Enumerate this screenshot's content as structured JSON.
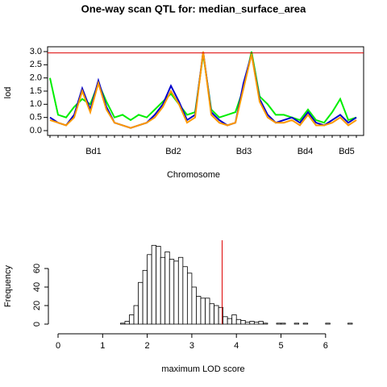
{
  "chart_data": [
    {
      "type": "line",
      "title": "One-way scan QTL for: median_surface_area",
      "y_label": "lod",
      "x_label": "Chromosome",
      "chromosomes": [
        {
          "name": "Bd1",
          "start": 0,
          "end": 108
        },
        {
          "name": "Bd2",
          "start": 108,
          "end": 198
        },
        {
          "name": "Bd3",
          "start": 198,
          "end": 283
        },
        {
          "name": "Bd4",
          "start": 283,
          "end": 350
        },
        {
          "name": "Bd5",
          "start": 350,
          "end": 386
        }
      ],
      "x": [
        0,
        10,
        20,
        30,
        40,
        50,
        60,
        70,
        80,
        90,
        100,
        110,
        120,
        130,
        140,
        150,
        160,
        170,
        180,
        190,
        200,
        210,
        220,
        230,
        240,
        250,
        260,
        270,
        280,
        290,
        300,
        310,
        320,
        330,
        340,
        350,
        360,
        370,
        380
      ],
      "series": [
        {
          "color": "#00ee00",
          "values": [
            2.0,
            0.6,
            0.5,
            0.9,
            1.2,
            1.0,
            1.8,
            1.1,
            0.5,
            0.6,
            0.4,
            0.6,
            0.5,
            0.8,
            1.1,
            1.4,
            1.0,
            0.6,
            0.7,
            2.9,
            0.8,
            0.5,
            0.6,
            0.7,
            1.6,
            3.0,
            1.3,
            1.0,
            0.6,
            0.6,
            0.5,
            0.4,
            0.8,
            0.4,
            0.3,
            0.7,
            1.2,
            0.4,
            0.5
          ]
        },
        {
          "color": "#0000cc",
          "values": [
            0.5,
            0.3,
            0.2,
            0.6,
            1.6,
            0.8,
            1.9,
            0.9,
            0.3,
            0.2,
            0.1,
            0.2,
            0.3,
            0.6,
            1.0,
            1.7,
            1.1,
            0.4,
            0.6,
            3.0,
            0.7,
            0.4,
            0.2,
            0.3,
            1.8,
            2.9,
            1.2,
            0.6,
            0.3,
            0.4,
            0.5,
            0.3,
            0.7,
            0.3,
            0.2,
            0.4,
            0.6,
            0.3,
            0.5
          ]
        },
        {
          "color": "#ff9900",
          "values": [
            0.4,
            0.3,
            0.2,
            0.5,
            1.5,
            0.7,
            1.8,
            0.8,
            0.3,
            0.2,
            0.1,
            0.2,
            0.3,
            0.5,
            0.9,
            1.5,
            1.0,
            0.3,
            0.5,
            3.0,
            0.6,
            0.3,
            0.2,
            0.3,
            1.6,
            2.9,
            1.1,
            0.5,
            0.3,
            0.3,
            0.4,
            0.2,
            0.6,
            0.2,
            0.2,
            0.3,
            0.5,
            0.2,
            0.4
          ]
        }
      ],
      "threshold": 2.95,
      "threshold_color": "#dd0000",
      "xlim": [
        0,
        386
      ],
      "ylim": [
        0,
        3
      ],
      "yticks": [
        {
          "value": 0,
          "label": "0.0"
        },
        {
          "value": 0.5,
          "label": "0.5"
        },
        {
          "value": 1,
          "label": "1.0"
        },
        {
          "value": 1.5,
          "label": "1.5"
        },
        {
          "value": 2,
          "label": "2.0"
        },
        {
          "value": 2.5,
          "label": "2.5"
        },
        {
          "value": 3,
          "label": "3.0"
        }
      ]
    },
    {
      "type": "histogram",
      "x_label": "maximum LOD score",
      "y_label": "Frequency",
      "bins": [
        1.4,
        1.5,
        1.6,
        1.7,
        1.8,
        1.9,
        2.0,
        2.1,
        2.2,
        2.3,
        2.4,
        2.5,
        2.6,
        2.7,
        2.8,
        2.9,
        3.0,
        3.1,
        3.2,
        3.3,
        3.4,
        3.5,
        3.6,
        3.7,
        3.8,
        3.9,
        4.0,
        4.1,
        4.2,
        4.3,
        4.4,
        4.5,
        4.6,
        4.7,
        4.8,
        4.9,
        5.0,
        5.1,
        5.2,
        5.3,
        5.4,
        5.5,
        5.6,
        5.7,
        5.8,
        5.9,
        6.0,
        6.1,
        6.2,
        6.3,
        6.4,
        6.5,
        6.6
      ],
      "values": [
        1,
        3,
        10,
        20,
        45,
        58,
        75,
        85,
        84,
        72,
        78,
        70,
        68,
        72,
        62,
        55,
        40,
        30,
        28,
        28,
        22,
        20,
        18,
        8,
        6,
        10,
        5,
        4,
        2,
        3,
        2,
        3,
        1,
        0,
        0,
        1,
        1,
        0,
        0,
        1,
        0,
        1,
        0,
        0,
        0,
        0,
        1,
        0,
        0,
        0,
        0,
        1
      ],
      "color": "#ffffff",
      "threshold": 3.68,
      "threshold_color": "#dd0000",
      "xlim": [
        0,
        6.6
      ],
      "ylim": [
        0,
        87
      ],
      "xticks": [
        0,
        1,
        2,
        3,
        4,
        5,
        6
      ],
      "yticks": [
        0,
        20,
        40,
        60
      ]
    }
  ]
}
